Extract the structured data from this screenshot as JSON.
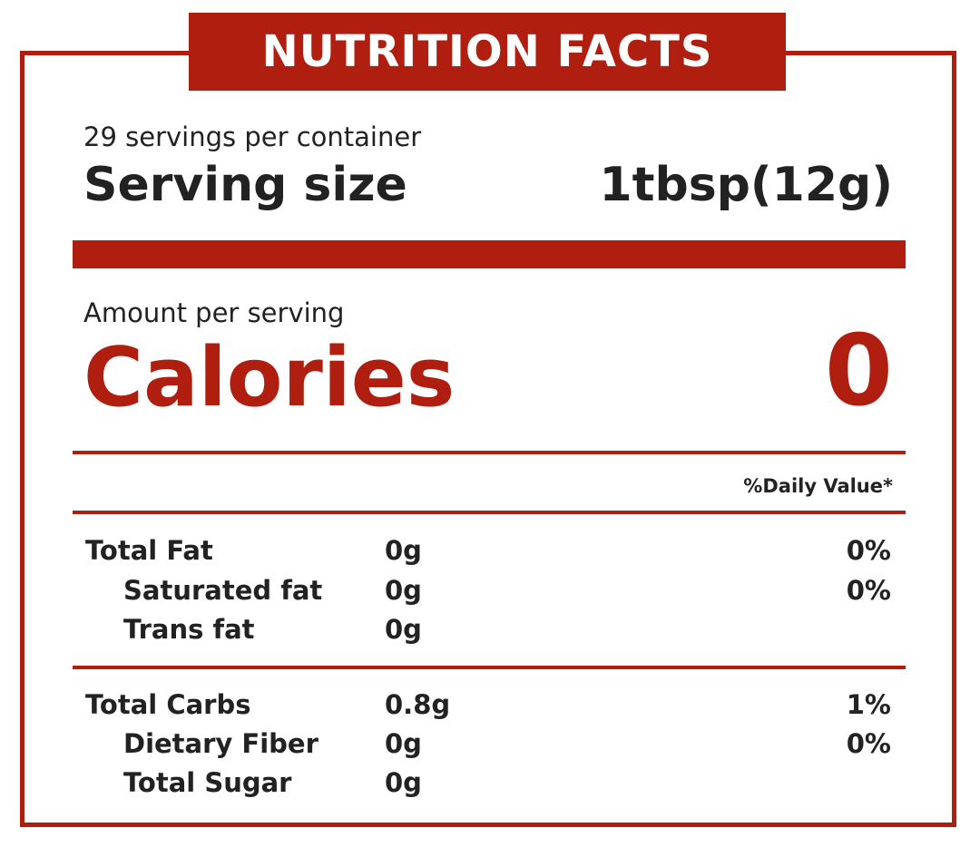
{
  "header": {
    "title": "NUTRITION FACTS"
  },
  "serving": {
    "servings_per_container": "29 servings per container",
    "size_label": "Serving size",
    "size_value": "1tbsp(12g)"
  },
  "calories": {
    "amount_label": "Amount per serving",
    "label": "Calories",
    "value": "0"
  },
  "daily_value_header": "%Daily Value*",
  "fat_section": [
    {
      "name": "Total Fat",
      "amount": "0g",
      "dv": "0%"
    },
    {
      "name": "Saturated fat",
      "amount": "0g",
      "dv": "0%"
    },
    {
      "name": "Trans fat",
      "amount": "0g",
      "dv": ""
    }
  ],
  "carb_section": [
    {
      "name": "Total Carbs",
      "amount": "0.8g",
      "dv": "1%"
    },
    {
      "name": "Dietary Fiber",
      "amount": "0g",
      "dv": "0%"
    },
    {
      "name": "Total Sugar",
      "amount": "0g",
      "dv": ""
    }
  ],
  "colors": {
    "accent": "#b01e10",
    "text": "#222222",
    "background": "#ffffff"
  }
}
